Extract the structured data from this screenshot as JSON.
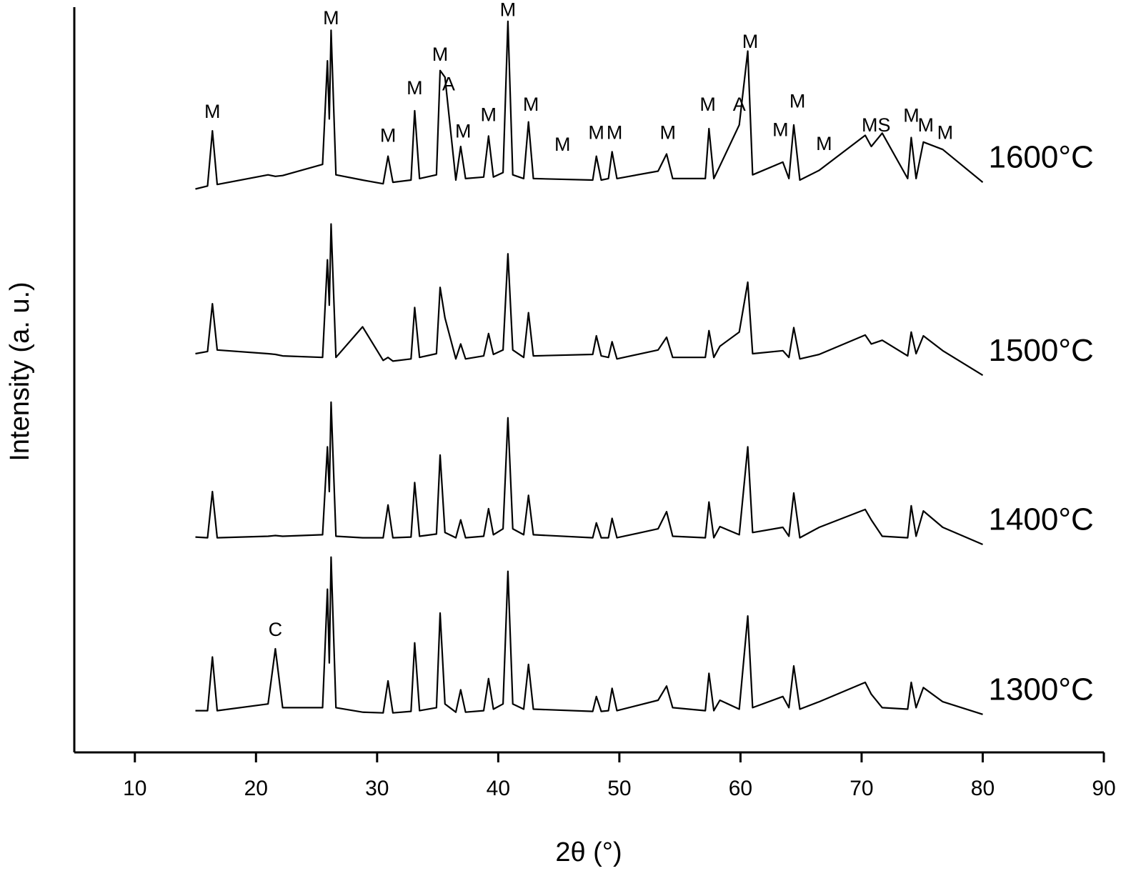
{
  "chart_data": {
    "type": "line",
    "x_label": "2θ (°)",
    "y_label": "Intensity (a. u.)",
    "xlim": [
      5,
      90
    ],
    "xticks": [
      10,
      20,
      30,
      40,
      50,
      60,
      70,
      80,
      90
    ],
    "ylim": [
      0,
      100
    ],
    "x": [
      15,
      16.0,
      16.4,
      16.8,
      21.0,
      21.6,
      22.2,
      25.5,
      25.9,
      26.05,
      26.2,
      26.6,
      28.8,
      30.5,
      30.9,
      31.3,
      32.8,
      33.1,
      33.5,
      34.9,
      35.2,
      35.6,
      36.5,
      36.9,
      37.3,
      38.8,
      39.2,
      39.6,
      40.4,
      40.8,
      41.2,
      42.1,
      42.5,
      42.9,
      47.8,
      48.1,
      48.5,
      49.1,
      49.4,
      49.8,
      53.2,
      53.9,
      54.4,
      57.1,
      57.4,
      57.8,
      58.3,
      59.9,
      60.6,
      61.0,
      63.5,
      64.0,
      64.4,
      64.9,
      66.5,
      70.3,
      70.8,
      71.7,
      73.8,
      74.1,
      74.5,
      75.1,
      76.7,
      80
    ],
    "series": [
      {
        "name": "1300°C",
        "color": "#000000",
        "values": [
          5.6,
          5.6,
          12.8,
          5.6,
          6.5,
          13.9,
          6.0,
          6.0,
          21.9,
          12,
          26.2,
          6.0,
          5.4,
          5.3,
          9.6,
          5.3,
          5.5,
          14.7,
          5.6,
          6.0,
          18.7,
          6.5,
          5.4,
          8.4,
          5.4,
          5.6,
          9.9,
          5.8,
          6.5,
          24.3,
          6.5,
          5.8,
          11.8,
          5.8,
          5.5,
          7.5,
          5.5,
          5.6,
          8.6,
          5.6,
          7.0,
          8.9,
          6.0,
          5.6,
          10.6,
          5.6,
          7.0,
          5.8,
          18.3,
          6.0,
          7.5,
          6.0,
          11.6,
          5.8,
          6.8,
          9.4,
          7.8,
          6.0,
          5.8,
          9.4,
          6.0,
          8.7,
          6.8,
          5.1
        ]
      },
      {
        "name": "1400°C",
        "color": "#000000",
        "values": [
          28.9,
          28.8,
          35.0,
          28.8,
          29.0,
          29.1,
          29.0,
          29.2,
          41.0,
          35,
          47.0,
          29.0,
          28.8,
          28.8,
          33.2,
          28.8,
          28.9,
          36.2,
          29.0,
          29.3,
          39.9,
          29.5,
          28.8,
          31.2,
          28.8,
          29.0,
          32.7,
          29.2,
          30.0,
          44.9,
          30.0,
          29.2,
          34.5,
          29.2,
          28.8,
          30.8,
          28.8,
          28.8,
          31.4,
          28.8,
          30.0,
          32.3,
          29.0,
          28.8,
          33.6,
          28.8,
          30.3,
          29.2,
          41.0,
          29.5,
          30.2,
          29.0,
          34.8,
          28.8,
          30.2,
          32.6,
          31.2,
          29.0,
          28.8,
          33.1,
          29.0,
          32.4,
          30.2,
          27.9
        ]
      },
      {
        "name": "1500°C",
        "color": "#000000",
        "values": [
          53.5,
          53.8,
          60.2,
          54.0,
          53.5,
          53.4,
          53.2,
          53.0,
          66.1,
          60,
          70.9,
          53.0,
          57.1,
          52.6,
          53.0,
          52.5,
          52.8,
          59.7,
          53.0,
          53.5,
          62.4,
          58.3,
          52.8,
          54.8,
          52.8,
          53.2,
          56.2,
          53.4,
          54.0,
          66.9,
          54.0,
          53.0,
          59.0,
          53.2,
          53.4,
          55.9,
          53.2,
          53.0,
          55.1,
          52.8,
          54.0,
          55.7,
          53.0,
          53.0,
          56.6,
          53.0,
          54.5,
          56.4,
          63.1,
          53.5,
          53.9,
          53.0,
          57.0,
          52.8,
          53.4,
          56.0,
          54.8,
          55.3,
          53.2,
          56.4,
          53.5,
          55.9,
          53.9,
          50.6
        ]
      },
      {
        "name": "1600°C",
        "color": "#000000",
        "values": [
          75.6,
          76.0,
          83.4,
          76.2,
          77.5,
          77.3,
          77.4,
          78.9,
          92.8,
          85,
          96.9,
          77.5,
          76.8,
          76.3,
          80.0,
          76.5,
          76.8,
          86.1,
          77.0,
          77.5,
          91.5,
          90.6,
          76.8,
          81.3,
          77.0,
          77.2,
          82.7,
          77.2,
          77.8,
          98.1,
          77.5,
          77.0,
          84.6,
          77.0,
          76.8,
          80.0,
          76.8,
          77.0,
          80.6,
          77.0,
          78.0,
          80.3,
          77.0,
          77.0,
          83.7,
          77.0,
          78.7,
          84.2,
          94.1,
          77.5,
          79.2,
          77.0,
          84.2,
          76.8,
          78.1,
          82.8,
          81.3,
          83.1,
          77.0,
          82.5,
          77.0,
          81.9,
          80.9,
          76.5
        ]
      }
    ],
    "annotations": [
      {
        "text": "C",
        "x": 21.6,
        "y": 16.3
      },
      {
        "text": "M",
        "x": 16.4,
        "y": 85.8
      },
      {
        "text": "M",
        "x": 26.2,
        "y": 98.4
      },
      {
        "text": "M",
        "x": 30.9,
        "y": 82.6
      },
      {
        "text": "M",
        "x": 33.1,
        "y": 89.0
      },
      {
        "text": "M",
        "x": 35.2,
        "y": 93.5
      },
      {
        "text": "A",
        "x": 35.9,
        "y": 89.5
      },
      {
        "text": "M",
        "x": 37.1,
        "y": 83.2
      },
      {
        "text": "M",
        "x": 39.2,
        "y": 85.4
      },
      {
        "text": "M",
        "x": 40.8,
        "y": 99.5
      },
      {
        "text": "M",
        "x": 42.7,
        "y": 86.8
      },
      {
        "text": "M",
        "x": 45.3,
        "y": 81.4
      },
      {
        "text": "M",
        "x": 48.1,
        "y": 83.0
      },
      {
        "text": "M",
        "x": 49.6,
        "y": 83.0
      },
      {
        "text": "M",
        "x": 54.0,
        "y": 83.0
      },
      {
        "text": "M",
        "x": 57.3,
        "y": 86.8
      },
      {
        "text": "A",
        "x": 59.9,
        "y": 86.8
      },
      {
        "text": "M",
        "x": 60.8,
        "y": 95.2
      },
      {
        "text": "M",
        "x": 63.3,
        "y": 83.4
      },
      {
        "text": "M",
        "x": 64.7,
        "y": 87.2
      },
      {
        "text": "M",
        "x": 66.9,
        "y": 81.5
      },
      {
        "text": "MS",
        "x": 71.2,
        "y": 84.0
      },
      {
        "text": "M",
        "x": 74.1,
        "y": 85.3
      },
      {
        "text": "M",
        "x": 75.3,
        "y": 84.0
      },
      {
        "text": "M",
        "x": 76.9,
        "y": 83.0
      }
    ]
  }
}
